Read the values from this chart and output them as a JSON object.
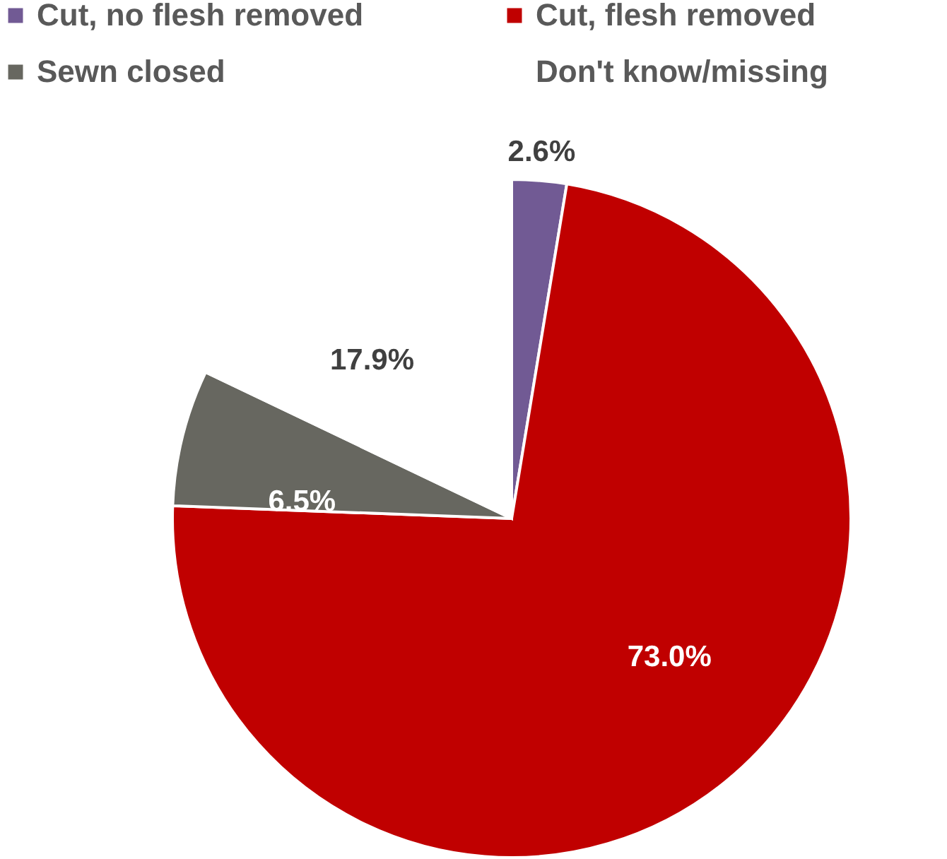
{
  "chart_data": {
    "type": "pie",
    "categories": [
      "Cut, no flesh removed",
      "Cut, flesh removed",
      "Sewn closed",
      "Don't know/missing"
    ],
    "values": [
      2.6,
      73.0,
      6.5,
      17.9
    ],
    "colors": [
      "#715a94",
      "#c00000",
      "#676760",
      "#ffffff"
    ],
    "value_labels": [
      "2.6%",
      "73.0%",
      "6.5%",
      "17.9%"
    ],
    "legend": "top"
  }
}
